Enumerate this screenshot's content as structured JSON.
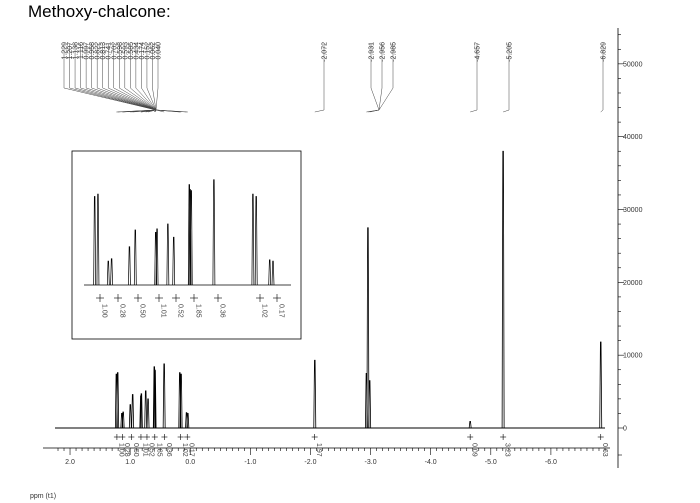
{
  "title": "Methoxy-chalcone:",
  "chart_data": {
    "type": "line",
    "xlabel": "ppm (t1)",
    "x_ticks": [
      "2.0",
      "1.0",
      "0.0",
      "-1.0",
      "-2.0",
      "-3.0",
      "-4.0",
      "-5.0",
      "-6.0"
    ],
    "xlim": [
      2.25,
      -6.9
    ],
    "y_ticks": [
      "0",
      "10000",
      "20000",
      "30000",
      "40000",
      "50000"
    ],
    "ylim": [
      0,
      53000
    ],
    "peak_labels": [
      "1.229",
      "1.207",
      "1.138",
      "1.116",
      "0.997",
      "0.958",
      "0.822",
      "0.813",
      "0.741",
      "0.702",
      "0.598",
      "0.593",
      "0.585",
      "0.434",
      "0.174",
      "0.152",
      "0.062",
      "0.040",
      "-2.072",
      "-2.931",
      "-2.956",
      "-2.985",
      "-4.657",
      "-5.205",
      "-6.829"
    ],
    "peaks": [
      {
        "x": 1.229,
        "y": 7400
      },
      {
        "x": 1.207,
        "y": 7600
      },
      {
        "x": 1.138,
        "y": 2000
      },
      {
        "x": 1.116,
        "y": 2200
      },
      {
        "x": 0.997,
        "y": 3200
      },
      {
        "x": 0.958,
        "y": 4600
      },
      {
        "x": 0.822,
        "y": 4400
      },
      {
        "x": 0.813,
        "y": 4700
      },
      {
        "x": 0.741,
        "y": 5100
      },
      {
        "x": 0.702,
        "y": 4000
      },
      {
        "x": 0.598,
        "y": 8400
      },
      {
        "x": 0.593,
        "y": 8000
      },
      {
        "x": 0.585,
        "y": 7900
      },
      {
        "x": 0.434,
        "y": 8800
      },
      {
        "x": 0.174,
        "y": 7600
      },
      {
        "x": 0.152,
        "y": 7400
      },
      {
        "x": 0.062,
        "y": 2100
      },
      {
        "x": 0.04,
        "y": 2000
      },
      {
        "x": -2.072,
        "y": 9300
      },
      {
        "x": -2.931,
        "y": 7500
      },
      {
        "x": -2.956,
        "y": 27500
      },
      {
        "x": -2.985,
        "y": 6500
      },
      {
        "x": -4.657,
        "y": 900
      },
      {
        "x": -5.205,
        "y": 38000
      },
      {
        "x": -6.829,
        "y": 11800
      }
    ],
    "integrals": [
      {
        "x": 1.22,
        "value": "1.00"
      },
      {
        "x": 1.13,
        "value": "0.28"
      },
      {
        "x": 0.98,
        "value": "0.50"
      },
      {
        "x": 0.82,
        "value": "1.01"
      },
      {
        "x": 0.72,
        "value": "0.52"
      },
      {
        "x": 0.59,
        "value": "1.85"
      },
      {
        "x": 0.43,
        "value": "0.36"
      },
      {
        "x": 0.16,
        "value": "1.02"
      },
      {
        "x": 0.05,
        "value": "0.17"
      },
      {
        "x": -2.07,
        "value": "1.97"
      },
      {
        "x": -4.657,
        "value": "0.09"
      },
      {
        "x": -5.205,
        "value": "3.23"
      },
      {
        "x": -6.829,
        "value": "0.63"
      }
    ],
    "inset": {
      "integrals": [
        "1.00",
        "0.28",
        "0.50",
        "1.01",
        "0.52",
        "1.85",
        "0.36",
        "1.02",
        "0.17"
      ]
    }
  }
}
